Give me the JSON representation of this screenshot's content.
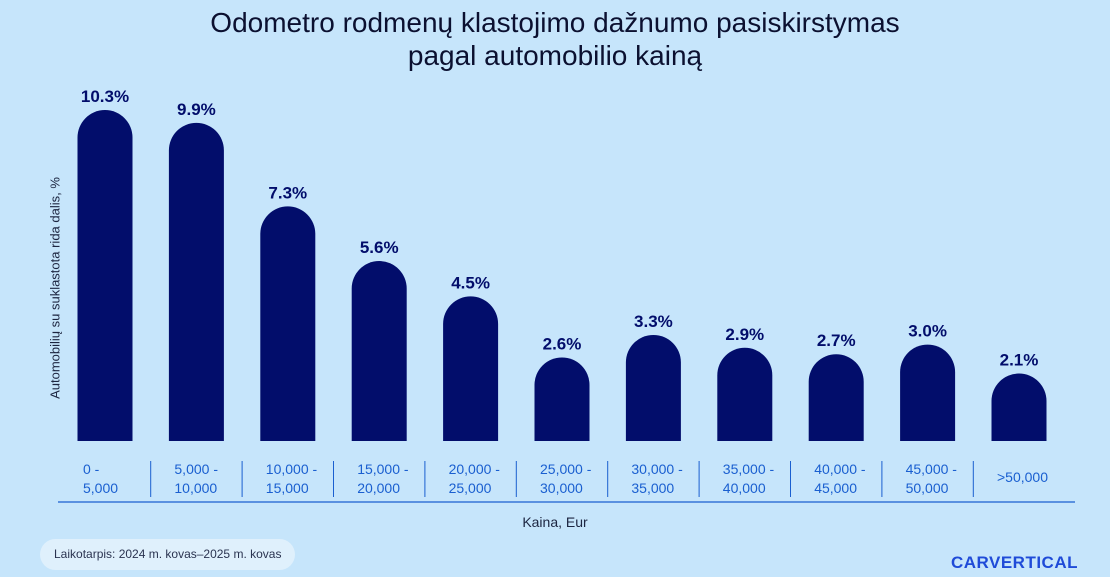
{
  "title_line1": "Odometro rodmenų klastojimo dažnumo pasiskirstymas",
  "title_line2": "pagal automobilio kainą",
  "footnote": "Laikotarpis: 2024 m. kovas–2025 m. kovas",
  "logo": "CARVERTICAL",
  "colors": {
    "bar": "#020d6b",
    "value_label": "#020d6b",
    "category_label": "#1a5fd0",
    "axis_line": "#1a5fd0",
    "background": "#c6e5fb"
  },
  "chart_data": {
    "type": "bar",
    "title": "Odometro rodmenų klastojimo dažnumo pasiskirstymas pagal automobilio kainą",
    "xlabel": "Kaina, Eur",
    "ylabel": "Automobilių su suklastota rida dalis, %",
    "ylim": [
      0,
      10.3
    ],
    "grid": false,
    "categories": [
      [
        "0 -",
        "5,000"
      ],
      [
        "5,000 -",
        "10,000"
      ],
      [
        "10,000 -",
        "15,000"
      ],
      [
        "15,000 -",
        "20,000"
      ],
      [
        "20,000 -",
        "25,000"
      ],
      [
        "25,000 -",
        "30,000"
      ],
      [
        "30,000 -",
        "35,000"
      ],
      [
        "35,000 -",
        "40,000"
      ],
      [
        "40,000 -",
        "45,000"
      ],
      [
        "45,000 -",
        "50,000"
      ],
      [
        ">50,000"
      ]
    ],
    "values": [
      10.3,
      9.9,
      7.3,
      5.6,
      4.5,
      2.6,
      3.3,
      2.9,
      2.7,
      3.0,
      2.1
    ],
    "value_labels": [
      "10.3%",
      "9.9%",
      "7.3%",
      "5.6%",
      "4.5%",
      "2.6%",
      "3.3%",
      "2.9%",
      "2.7%",
      "3.0%",
      "2.1%"
    ]
  }
}
